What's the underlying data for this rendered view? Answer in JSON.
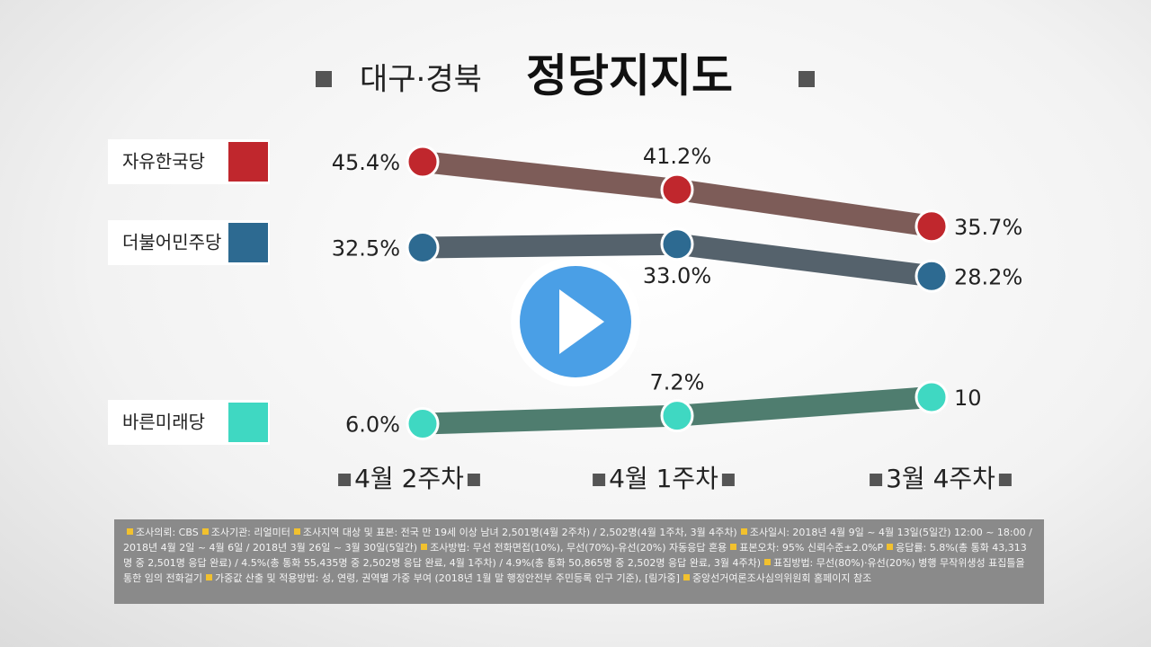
{
  "chart_data": {
    "type": "line",
    "title_region": "대구·경북",
    "title": "정당지지도",
    "categories": [
      "4월 2주차",
      "4월 1주차",
      "3월 4주차"
    ],
    "series": [
      {
        "name": "자유한국당",
        "color": "#c0272d",
        "line_color": "#7d5c58",
        "values": [
          45.4,
          41.2,
          35.7
        ],
        "value_labels": [
          "45.4%",
          "41.2%",
          "35.7%"
        ]
      },
      {
        "name": "더불어민주당",
        "color": "#2d6a91",
        "line_color": "#55626c",
        "values": [
          32.5,
          33.0,
          28.2
        ],
        "value_labels": [
          "32.5%",
          "33.0%",
          "28.2%"
        ]
      },
      {
        "name": "바른미래당",
        "color": "#3fd8c2",
        "line_color": "#4f7d6f",
        "values": [
          6.0,
          7.2,
          10
        ],
        "value_labels": [
          "6.0%",
          "7.2%",
          "10"
        ]
      }
    ],
    "footnotes": [
      "조사의뢰: CBS",
      "조사기관: 리얼미터",
      "조사지역 대상 및 표본: 전국 만 19세 이상 남녀 2,501명(4월 2주차) / 2,502명(4월 1주차, 3월 4주차)",
      "조사일시: 2018년 4월 9일 ~ 4월 13일(5일간) 12:00 ~ 18:00 / 2018년 4월 2일 ~ 4월 6일 / 2018년 3월 26일 ~ 3월 30일(5일간)",
      "조사방법: 무선 전화면접(10%), 무선(70%)-유선(20%) 자동응답 혼용",
      "표본오차: 95% 신뢰수준±2.0%P",
      "응답률: 5.8%(총 통화 43,313명 중 2,501명 응답 완료) / 4.5%(총 통화 55,435명 중 2,502명 응답 완료, 4월 1주차) / 4.9%(총 통화 50,865명 중 2,502명 응답 완료, 3월 4주차)",
      "표집방법: 무선(80%)·유선(20%) 병행 무작위생성 표집틀을 통한 임의 전화걸기",
      "가중값 산출 및 적용방법: 성, 연령, 권역별 가중 부여 (2018년 1월 말 행정안전부 주민등록 인구 기준), [림가중]",
      "중앙선거여론조사심의위원회 홈페이지 참조"
    ]
  }
}
